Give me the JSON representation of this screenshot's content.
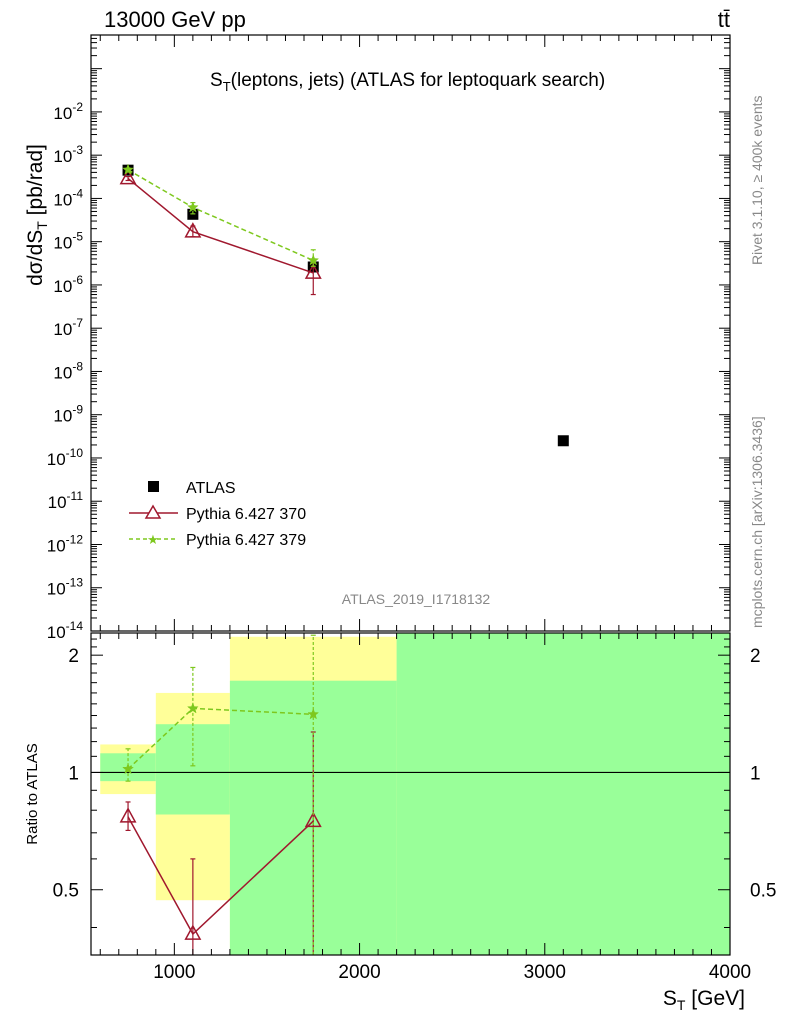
{
  "header": {
    "energy_label": "13000 GeV pp",
    "process_label": "tt̄"
  },
  "side_labels": {
    "rivet": "Rivet 3.1.10, ≥ 400k events",
    "mcplots": "mcplots.cern.ch [arXiv:1306.3436]"
  },
  "chart_data": [
    {
      "type": "scatter",
      "title": "ST(leptons, jets) (ATLAS for leptoquark search)",
      "title_main": "S",
      "title_sub": "T",
      "title_rest": "(leptons, jets) (ATLAS for leptoquark search)",
      "ylabel_main": "dσ/dS",
      "ylabel_sub": "T",
      "ylabel_rest": " [pb/rad]",
      "watermark": "ATLAS_2019_I1718132",
      "yscale": "log",
      "ylim": [
        1e-14,
        0.6
      ],
      "xlim": [
        550,
        4000
      ],
      "y_tick_exponents": [
        "-2",
        "-3",
        "-4",
        "-5",
        "-6",
        "-7",
        "-8",
        "-9",
        "-10",
        "-11",
        "-12",
        "-13",
        "-14"
      ],
      "legend_position": "bottom-left",
      "series": [
        {
          "name": "ATLAS",
          "color": "#000000",
          "marker": "square",
          "points": [
            {
              "x": 750,
              "y": 0.00045
            },
            {
              "x": 1100,
              "y": 4.3e-05
            },
            {
              "x": 1750,
              "y": 2.6e-06
            },
            {
              "x": 3100,
              "y": 2.5e-10
            }
          ]
        },
        {
          "name": "Pythia 6.427 370",
          "color": "#a0182e",
          "marker": "triangle",
          "line": "solid",
          "points": [
            {
              "x": 750,
              "y": 0.00029,
              "ylo": 0.00026,
              "yhi": 0.00032
            },
            {
              "x": 1100,
              "y": 1.7e-05,
              "ylo": 1.3e-05,
              "yhi": 2.3e-05
            },
            {
              "x": 1750,
              "y": 1.9e-06,
              "ylo": 6e-07,
              "yhi": 3.3e-06
            }
          ]
        },
        {
          "name": "Pythia 6.427 379",
          "color": "#7ec81e",
          "marker": "star",
          "line": "dashed",
          "points": [
            {
              "x": 750,
              "y": 0.00046,
              "ylo": 0.00043,
              "yhi": 0.0005
            },
            {
              "x": 1100,
              "y": 6.2e-05,
              "ylo": 4.4e-05,
              "yhi": 8e-05
            },
            {
              "x": 1750,
              "y": 3.7e-06,
              "ylo": 2.7e-06,
              "yhi": 6.5e-06
            }
          ]
        }
      ]
    },
    {
      "type": "scatter",
      "ylabel": "Ratio to ATLAS",
      "xlabel_main": "S",
      "xlabel_sub": "T",
      "xlabel_rest": " [GeV]",
      "ylim": [
        0.34,
        2.28
      ],
      "xlim": [
        550,
        4000
      ],
      "x_ticks": [
        "1000",
        "2000",
        "3000",
        "4000"
      ],
      "y_ticks": [
        "0.5",
        "1",
        "2"
      ],
      "bands": [
        {
          "x0": 600,
          "x1": 900,
          "yellow": [
            0.88,
            1.18
          ],
          "green": [
            0.95,
            1.12
          ]
        },
        {
          "x0": 900,
          "x1": 1300,
          "yellow": [
            0.47,
            1.6
          ],
          "green": [
            0.78,
            1.33
          ]
        },
        {
          "x0": 1300,
          "x1": 2200,
          "yellow": [
            0.34,
            2.23
          ],
          "green": [
            0.34,
            1.72
          ]
        },
        {
          "x0": 2200,
          "x1": 4000,
          "yellow": [
            0.34,
            2.28
          ],
          "green": [
            0.34,
            2.28
          ]
        }
      ],
      "series": [
        {
          "name": "Pythia 6.427 370",
          "color": "#a0182e",
          "marker": "triangle",
          "line": "solid",
          "points": [
            {
              "x": 750,
              "y": 0.77,
              "ylo": 0.71,
              "yhi": 0.84
            },
            {
              "x": 1100,
              "y": 0.385,
              "ylo": 0.34,
              "yhi": 0.6
            },
            {
              "x": 1750,
              "y": 0.75,
              "ylo": 0.34,
              "yhi": 1.27
            }
          ]
        },
        {
          "name": "Pythia 6.427 379",
          "color": "#7ec81e",
          "marker": "star",
          "line": "dashed",
          "points": [
            {
              "x": 750,
              "y": 1.02,
              "ylo": 0.95,
              "yhi": 1.15
            },
            {
              "x": 1100,
              "y": 1.46,
              "ylo": 1.04,
              "yhi": 1.86
            },
            {
              "x": 1750,
              "y": 1.41,
              "ylo": 0.34,
              "yhi": 2.25
            }
          ]
        }
      ]
    }
  ]
}
